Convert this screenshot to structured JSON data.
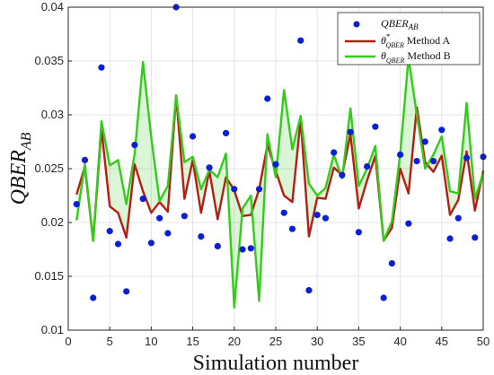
{
  "chart_data": {
    "type": "line",
    "xlabel": "Simulation number",
    "ylabel": {
      "base": "QBER",
      "sub": "AB"
    },
    "xlim": [
      0,
      50
    ],
    "ylim": [
      0.01,
      0.04
    ],
    "xticks": [
      0,
      5,
      10,
      15,
      20,
      25,
      30,
      35,
      40,
      45,
      50
    ],
    "yticks": [
      0.01,
      0.015,
      0.02,
      0.025,
      0.03,
      0.035,
      0.04
    ],
    "ytick_labels": [
      "0.01",
      "0.015",
      "0.02",
      "0.025",
      "0.03",
      "0.035",
      "0.04"
    ],
    "grid": true,
    "legend_placement": "top-right",
    "x": [
      1,
      2,
      3,
      4,
      5,
      6,
      7,
      8,
      9,
      10,
      11,
      12,
      13,
      14,
      15,
      16,
      17,
      18,
      19,
      20,
      21,
      22,
      23,
      24,
      25,
      26,
      27,
      28,
      29,
      30,
      31,
      32,
      33,
      34,
      35,
      36,
      37,
      38,
      39,
      40,
      41,
      42,
      43,
      44,
      45,
      46,
      47,
      48,
      49,
      50
    ],
    "series": [
      {
        "name": "QBER_AB",
        "legend": {
          "base": "QBER",
          "sub": "AB"
        },
        "kind": "scatter",
        "color": "#0a1fd6",
        "values": [
          0.0217,
          0.0258,
          0.013,
          0.0344,
          0.0192,
          0.018,
          0.0136,
          0.0272,
          0.0222,
          0.0181,
          0.0204,
          0.019,
          0.04,
          0.0206,
          0.028,
          0.0187,
          0.0251,
          0.0178,
          0.0283,
          0.0231,
          0.0175,
          0.0176,
          0.0231,
          0.0315,
          0.0254,
          0.0209,
          0.0194,
          0.0369,
          0.0137,
          0.0207,
          0.0204,
          0.0265,
          0.0244,
          0.0284,
          0.0191,
          0.0252,
          0.0289,
          0.013,
          0.0162,
          0.0263,
          0.0199,
          0.0257,
          0.0275,
          0.0257,
          0.0286,
          0.0185,
          0.0204,
          0.026,
          0.0186,
          0.0261
        ]
      },
      {
        "name": "theta*_QBER Method A",
        "legend": {
          "base": "θ",
          "sup": "*",
          "sub": "QBER",
          "suffix": " Method A"
        },
        "kind": "line",
        "color": "#b51d13",
        "values": [
          0.0226,
          0.0252,
          0.0183,
          0.0287,
          0.0215,
          0.0209,
          0.0186,
          0.0254,
          0.0229,
          0.0209,
          0.0219,
          0.021,
          0.0318,
          0.0222,
          0.0258,
          0.0209,
          0.0248,
          0.0203,
          0.0242,
          0.023,
          0.0206,
          0.0207,
          0.0231,
          0.0272,
          0.0248,
          0.0225,
          0.0219,
          0.0296,
          0.0187,
          0.0223,
          0.0222,
          0.0251,
          0.0244,
          0.0282,
          0.0213,
          0.0239,
          0.0262,
          0.0183,
          0.0195,
          0.025,
          0.0227,
          0.0307,
          0.0256,
          0.0247,
          0.0262,
          0.0207,
          0.0221,
          0.0266,
          0.0211,
          0.0248
        ]
      },
      {
        "name": "theta_QBER Method B",
        "legend": {
          "base": "θ",
          "sub": "QBER",
          "suffix": " Method B"
        },
        "kind": "line",
        "color": "#33cc1a",
        "values": [
          0.0202,
          0.0254,
          0.0183,
          0.0294,
          0.0253,
          0.0258,
          0.0217,
          0.0264,
          0.0349,
          0.0279,
          0.022,
          0.0234,
          0.0318,
          0.0256,
          0.0261,
          0.0231,
          0.0249,
          0.0242,
          0.0264,
          0.0121,
          0.0213,
          0.0225,
          0.0127,
          0.0282,
          0.0242,
          0.0323,
          0.0268,
          0.0299,
          0.0236,
          0.0225,
          0.0232,
          0.0263,
          0.0241,
          0.0306,
          0.0234,
          0.025,
          0.0271,
          0.0183,
          0.0201,
          0.0264,
          0.0353,
          0.03,
          0.025,
          0.0263,
          0.028,
          0.0229,
          0.0227,
          0.0311,
          0.0222,
          0.0246
        ]
      }
    ]
  }
}
